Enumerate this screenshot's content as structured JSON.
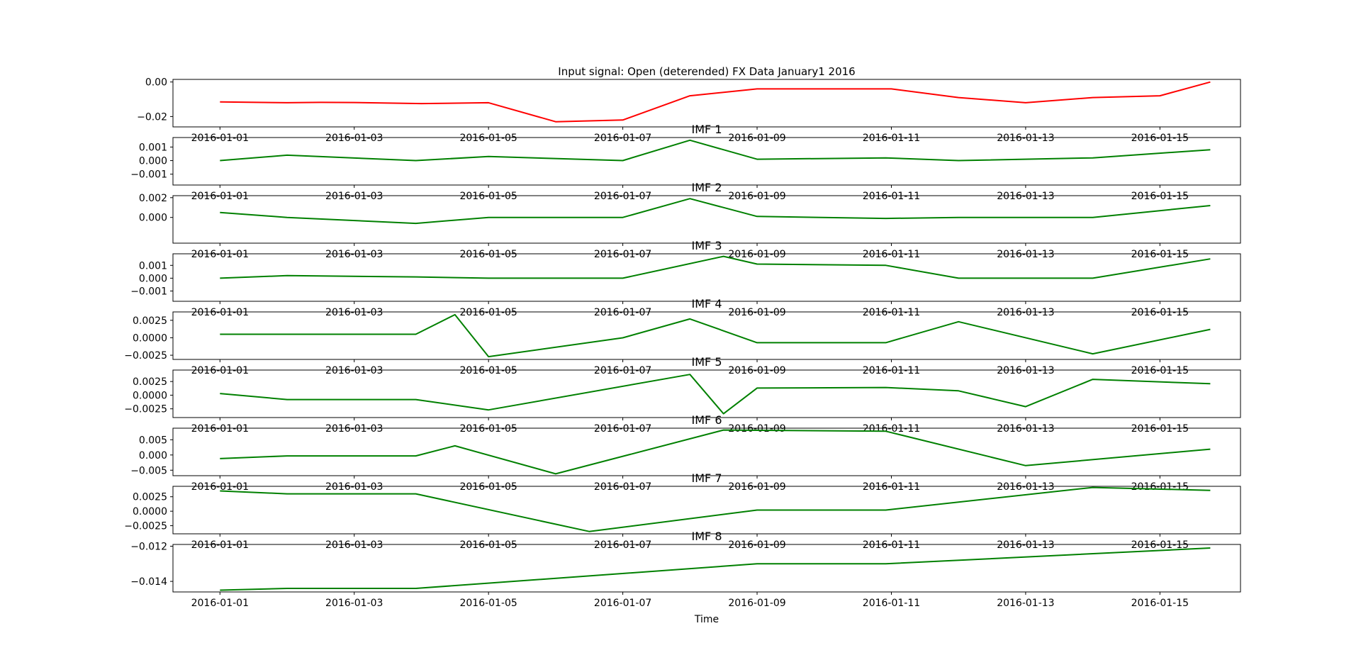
{
  "figure": {
    "title": "Input signal: Open (deterended) FX Data January1 2016",
    "xlabel": "Time",
    "colors": {
      "signal": "#ff0000",
      "imf": "#008000",
      "axis": "#000000"
    }
  },
  "chart_data": [
    {
      "type": "line",
      "title": "Input signal: Open (deterended) FX Data January1 2016",
      "xlabel": "",
      "ylabel": "",
      "xticks": [
        "2016-01-01",
        "2016-01-03",
        "2016-01-05",
        "2016-01-07",
        "2016-01-09",
        "2016-01-11",
        "2016-01-13",
        "2016-01-15"
      ],
      "yticks": [
        {
          "v": 0.0,
          "label": "0.00"
        },
        {
          "v": -0.02,
          "label": "−0.02"
        }
      ],
      "ylim": [
        -0.026,
        0.0015
      ],
      "color": "#ff0000",
      "grid": false,
      "series": [
        {
          "x": [
            "2016-01-01",
            "2016-01-02",
            "2016-01-02 12:00",
            "2016-01-03",
            "2016-01-04",
            "2016-01-05",
            "2016-01-06",
            "2016-01-07",
            "2016-01-08",
            "2016-01-09",
            "2016-01-10",
            "2016-01-11",
            "2016-01-12",
            "2016-01-13",
            "2016-01-14",
            "2016-01-15",
            "2016-01-15 18:00"
          ],
          "y": [
            -0.0115,
            -0.012,
            -0.0118,
            -0.0119,
            -0.0125,
            -0.012,
            -0.023,
            -0.022,
            -0.008,
            -0.004,
            -0.004,
            -0.004,
            -0.009,
            -0.012,
            -0.009,
            -0.008,
            0.0
          ]
        }
      ]
    },
    {
      "type": "line",
      "title": "IMF 1",
      "xlabel": "",
      "ylabel": "",
      "xticks": [
        "2016-01-01",
        "2016-01-03",
        "2016-01-05",
        "2016-01-07",
        "2016-01-09",
        "2016-01-11",
        "2016-01-13",
        "2016-01-15"
      ],
      "yticks": [
        {
          "v": 0.001,
          "label": "0.001"
        },
        {
          "v": 0.0,
          "label": "0.000"
        },
        {
          "v": -0.001,
          "label": "−0.001"
        }
      ],
      "ylim": [
        -0.0018,
        0.0017
      ],
      "color": "#008000",
      "grid": false,
      "series": [
        {
          "x": [
            "2016-01-01",
            "2016-01-02",
            "2016-01-03 22:00",
            "2016-01-05",
            "2016-01-07",
            "2016-01-08",
            "2016-01-09",
            "2016-01-10 22:00",
            "2016-01-12",
            "2016-01-14",
            "2016-01-15 18:00"
          ],
          "y": [
            0.0,
            0.0004,
            0.0,
            0.0003,
            0.0,
            0.0015,
            0.0001,
            0.0002,
            0.0,
            0.0002,
            0.0008
          ]
        }
      ]
    },
    {
      "type": "line",
      "title": "IMF 2",
      "xlabel": "",
      "ylabel": "",
      "xticks": [
        "2016-01-01",
        "2016-01-03",
        "2016-01-05",
        "2016-01-07",
        "2016-01-09",
        "2016-01-11",
        "2016-01-13",
        "2016-01-15"
      ],
      "yticks": [
        {
          "v": 0.002,
          "label": "0.002"
        },
        {
          "v": 0.0,
          "label": "0.000"
        }
      ],
      "ylim": [
        -0.0026,
        0.0022
      ],
      "color": "#008000",
      "grid": false,
      "series": [
        {
          "x": [
            "2016-01-01",
            "2016-01-02",
            "2016-01-03 22:00",
            "2016-01-05",
            "2016-01-07",
            "2016-01-08",
            "2016-01-09",
            "2016-01-10 22:00",
            "2016-01-12",
            "2016-01-14",
            "2016-01-15 18:00"
          ],
          "y": [
            0.0005,
            0.0,
            -0.0006,
            0.0,
            0.0,
            0.0019,
            0.0001,
            -0.0001,
            0.0,
            0.0,
            0.0012
          ]
        }
      ]
    },
    {
      "type": "line",
      "title": "IMF 3",
      "xlabel": "",
      "ylabel": "",
      "xticks": [
        "2016-01-01",
        "2016-01-03",
        "2016-01-05",
        "2016-01-07",
        "2016-01-09",
        "2016-01-11",
        "2016-01-13",
        "2016-01-15"
      ],
      "yticks": [
        {
          "v": 0.001,
          "label": "0.001"
        },
        {
          "v": 0.0,
          "label": "0.000"
        },
        {
          "v": -0.001,
          "label": "−0.001"
        }
      ],
      "ylim": [
        -0.0018,
        0.0019
      ],
      "color": "#008000",
      "grid": false,
      "series": [
        {
          "x": [
            "2016-01-01",
            "2016-01-02",
            "2016-01-03 22:00",
            "2016-01-05",
            "2016-01-07",
            "2016-01-08 12:00",
            "2016-01-09",
            "2016-01-10 22:00",
            "2016-01-12",
            "2016-01-14",
            "2016-01-15 18:00"
          ],
          "y": [
            0.0,
            0.0002,
            0.0001,
            0.0,
            0.0,
            0.0017,
            0.0011,
            0.001,
            0.0,
            0.0,
            0.0015
          ]
        }
      ]
    },
    {
      "type": "line",
      "title": "IMF 4",
      "xlabel": "",
      "ylabel": "",
      "xticks": [
        "2016-01-01",
        "2016-01-03",
        "2016-01-05",
        "2016-01-07",
        "2016-01-09",
        "2016-01-11",
        "2016-01-13",
        "2016-01-15"
      ],
      "yticks": [
        {
          "v": 0.0025,
          "label": "0.0025"
        },
        {
          "v": 0.0,
          "label": "0.0000"
        },
        {
          "v": -0.0025,
          "label": "−0.0025"
        }
      ],
      "ylim": [
        -0.0031,
        0.0037
      ],
      "color": "#008000",
      "grid": false,
      "series": [
        {
          "x": [
            "2016-01-01",
            "2016-01-02",
            "2016-01-03 22:00",
            "2016-01-04 12:00",
            "2016-01-05",
            "2016-01-07",
            "2016-01-08",
            "2016-01-09",
            "2016-01-10 22:00",
            "2016-01-12",
            "2016-01-14",
            "2016-01-15 18:00"
          ],
          "y": [
            0.0005,
            0.0005,
            0.0005,
            0.0033,
            -0.0027,
            0.0,
            0.0027,
            -0.0007,
            -0.0007,
            0.0023,
            -0.0023,
            0.0012
          ]
        }
      ]
    },
    {
      "type": "line",
      "title": "IMF 5",
      "xlabel": "",
      "ylabel": "",
      "xticks": [
        "2016-01-01",
        "2016-01-03",
        "2016-01-05",
        "2016-01-07",
        "2016-01-09",
        "2016-01-11",
        "2016-01-13",
        "2016-01-15"
      ],
      "yticks": [
        {
          "v": 0.0025,
          "label": "0.0025"
        },
        {
          "v": 0.0,
          "label": "0.0000"
        },
        {
          "v": -0.0025,
          "label": "−0.0025"
        }
      ],
      "ylim": [
        -0.0041,
        0.0046
      ],
      "color": "#008000",
      "grid": false,
      "series": [
        {
          "x": [
            "2016-01-01",
            "2016-01-02",
            "2016-01-03 22:00",
            "2016-01-05",
            "2016-01-08",
            "2016-01-08 12:00",
            "2016-01-09",
            "2016-01-10 22:00",
            "2016-01-12",
            "2016-01-13",
            "2016-01-14",
            "2016-01-15 18:00"
          ],
          "y": [
            0.0003,
            -0.0008,
            -0.0008,
            -0.0027,
            0.0038,
            -0.0034,
            0.0013,
            0.0014,
            0.0008,
            -0.0021,
            0.0029,
            0.0021
          ]
        }
      ]
    },
    {
      "type": "line",
      "title": "IMF 6",
      "xlabel": "",
      "ylabel": "",
      "xticks": [
        "2016-01-01",
        "2016-01-03",
        "2016-01-05",
        "2016-01-07",
        "2016-01-09",
        "2016-01-11",
        "2016-01-13",
        "2016-01-15"
      ],
      "yticks": [
        {
          "v": 0.005,
          "label": "0.005"
        },
        {
          "v": 0.0,
          "label": "0.000"
        },
        {
          "v": -0.005,
          "label": "−0.005"
        }
      ],
      "ylim": [
        -0.0068,
        0.0088
      ],
      "color": "#008000",
      "grid": false,
      "series": [
        {
          "x": [
            "2016-01-01",
            "2016-01-02",
            "2016-01-03 22:00",
            "2016-01-04 12:00",
            "2016-01-06",
            "2016-01-08 12:00",
            "2016-01-10 22:00",
            "2016-01-13",
            "2016-01-15 18:00"
          ],
          "y": [
            -0.0012,
            -0.0003,
            -0.0003,
            0.003,
            -0.0062,
            0.0082,
            0.0078,
            -0.0035,
            0.0019
          ]
        }
      ]
    },
    {
      "type": "line",
      "title": "IMF 7",
      "xlabel": "",
      "ylabel": "",
      "xticks": [
        "2016-01-01",
        "2016-01-03",
        "2016-01-05",
        "2016-01-07",
        "2016-01-09",
        "2016-01-11",
        "2016-01-13",
        "2016-01-15"
      ],
      "yticks": [
        {
          "v": 0.0025,
          "label": "0.0025"
        },
        {
          "v": 0.0,
          "label": "0.0000"
        },
        {
          "v": -0.0025,
          "label": "−0.0025"
        }
      ],
      "ylim": [
        -0.0039,
        0.0043
      ],
      "color": "#008000",
      "grid": false,
      "series": [
        {
          "x": [
            "2016-01-01",
            "2016-01-02",
            "2016-01-03 22:00",
            "2016-01-06 12:00",
            "2016-01-09",
            "2016-01-10 22:00",
            "2016-01-14",
            "2016-01-15 18:00"
          ],
          "y": [
            0.0035,
            0.003,
            0.003,
            -0.0035,
            0.0002,
            0.0002,
            0.0041,
            0.0036
          ]
        }
      ]
    },
    {
      "type": "line",
      "title": "IMF 8",
      "xlabel": "Time",
      "ylabel": "",
      "xticks": [
        "2016-01-01",
        "2016-01-03",
        "2016-01-05",
        "2016-01-07",
        "2016-01-09",
        "2016-01-11",
        "2016-01-13",
        "2016-01-15"
      ],
      "yticks": [
        {
          "v": -0.012,
          "label": "−0.012"
        },
        {
          "v": -0.014,
          "label": "−0.014"
        }
      ],
      "ylim": [
        -0.0146,
        -0.0119
      ],
      "color": "#008000",
      "grid": false,
      "series": [
        {
          "x": [
            "2016-01-01",
            "2016-01-02",
            "2016-01-03 22:00",
            "2016-01-09",
            "2016-01-10 22:00",
            "2016-01-15 18:00"
          ],
          "y": [
            -0.0145,
            -0.0144,
            -0.0144,
            -0.013,
            -0.013,
            -0.0121
          ]
        }
      ]
    }
  ]
}
